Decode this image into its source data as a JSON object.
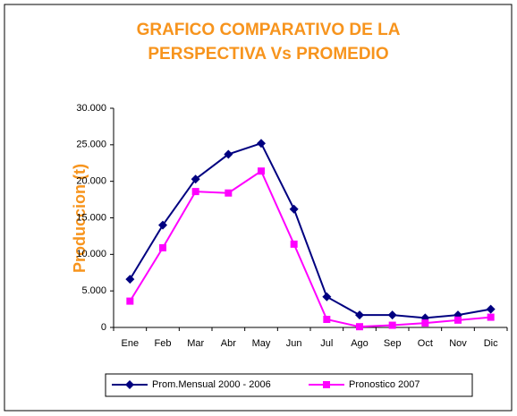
{
  "chart_data": {
    "type": "line",
    "title": "GRAFICO COMPARATIVO DE LA PERSPECTIVA Vs PROMEDIO",
    "y_label": "Produccion (t)",
    "categories": [
      "Ene",
      "Feb",
      "Mar",
      "Abr",
      "May",
      "Jun",
      "Jul",
      "Ago",
      "Sep",
      "Oct",
      "Nov",
      "Dic"
    ],
    "series": [
      {
        "name": "Prom.Mensual 2000 - 2006",
        "color": "#000080",
        "marker": "diamond",
        "values": [
          6600,
          14000,
          20300,
          23700,
          25200,
          16200,
          4200,
          1700,
          1700,
          1300,
          1700,
          2500
        ]
      },
      {
        "name": "Pronostico 2007",
        "color": "#ff00ff",
        "marker": "square",
        "values": [
          3600,
          10900,
          18600,
          18400,
          21400,
          11400,
          1100,
          100,
          300,
          600,
          1000,
          1400
        ]
      }
    ],
    "ylim": [
      0,
      30000
    ],
    "yticks": [
      0,
      {
        "value": 5000,
        "label": "5.000"
      },
      {
        "value": 10000,
        "label": "10.000"
      },
      {
        "value": 15000,
        "label": "15.000"
      },
      {
        "value": 20000,
        "label": "20.000"
      },
      {
        "value": 25000,
        "label": "25.000"
      },
      {
        "value": 30000,
        "label": "30.000"
      }
    ],
    "grid": false,
    "legend": "bottom"
  }
}
